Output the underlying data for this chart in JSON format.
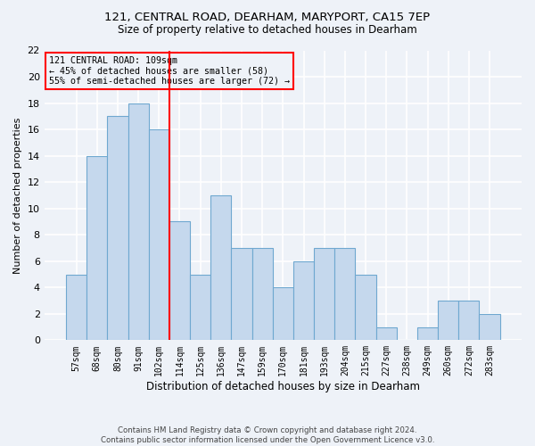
{
  "title1": "121, CENTRAL ROAD, DEARHAM, MARYPORT, CA15 7EP",
  "title2": "Size of property relative to detached houses in Dearham",
  "xlabel": "Distribution of detached houses by size in Dearham",
  "ylabel": "Number of detached properties",
  "footnote1": "Contains HM Land Registry data © Crown copyright and database right 2024.",
  "footnote2": "Contains public sector information licensed under the Open Government Licence v3.0.",
  "categories": [
    "57sqm",
    "68sqm",
    "80sqm",
    "91sqm",
    "102sqm",
    "114sqm",
    "125sqm",
    "136sqm",
    "147sqm",
    "159sqm",
    "170sqm",
    "181sqm",
    "193sqm",
    "204sqm",
    "215sqm",
    "227sqm",
    "238sqm",
    "249sqm",
    "260sqm",
    "272sqm",
    "283sqm"
  ],
  "values": [
    5,
    14,
    17,
    18,
    16,
    9,
    5,
    11,
    7,
    7,
    4,
    6,
    7,
    7,
    5,
    1,
    0,
    1,
    3,
    3,
    2
  ],
  "bar_color": "#c5d8ed",
  "bar_edge_color": "#6fa8d0",
  "vline_x": 4.5,
  "vline_color": "red",
  "annotation_title": "121 CENTRAL ROAD: 109sqm",
  "annotation_line2": "← 45% of detached houses are smaller (58)",
  "annotation_line3": "55% of semi-detached houses are larger (72) →",
  "annotation_box_color": "red",
  "ylim": [
    0,
    22
  ],
  "yticks": [
    0,
    2,
    4,
    6,
    8,
    10,
    12,
    14,
    16,
    18,
    20,
    22
  ],
  "background_color": "#eef2f8",
  "grid_color": "#ffffff"
}
